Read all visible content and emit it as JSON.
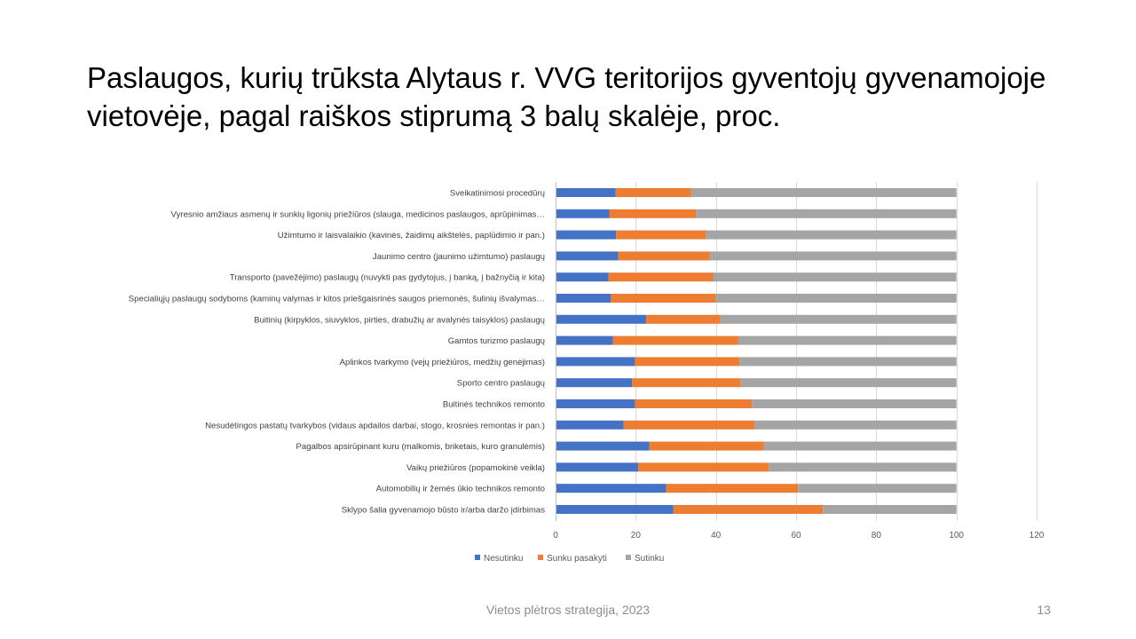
{
  "slide": {
    "title_line1": "Paslaugos, kurių trūksta Alytaus r. VVG teritorijos gyventojų gyvenamojoje",
    "title_line2": "vietovėje, pagal raiškos stiprumą 3 balų skalėje, proc.",
    "footer": "Vietos plėtros strategija, 2023",
    "page_number": "13"
  },
  "chart_data": {
    "type": "bar",
    "orientation": "horizontal",
    "stacked": true,
    "categories": [
      "Sveikatinimosi procedūrų",
      "Vyresnio amžiaus asmenų ir sunkių ligonių priežiūros (slauga, medicinos paslaugos, aprūpinimas…",
      "Užimtumo ir laisvalaikio (kavinės, žaidimų aikštelės, paplūdimio ir pan.)",
      "Jaunimo centro (jaunimo užimtumo) paslaugų",
      "Transporto (pavežėjimo) paslaugų (nuvykti pas gydytojus, į banką, į bažnyčią ir kita)",
      "Specialiųjų paslaugų sodyboms (kaminų valymas ir kitos priešgaisrinės saugos priemonės, šulinių išvalymas…",
      "Buitinių (kirpyklos, siuvyklos, pirties, drabužių ar avalynės taisyklos) paslaugų",
      "Gamtos turizmo paslaugų",
      "Aplinkos tvarkymo (vejų priežiūros, medžių genėjimas)",
      "Sporto centro paslaugų",
      "Buitinės technikos remonto",
      "Nesudėtingos pastatų tvarkybos (vidaus apdailos darbai, stogo, krosnies remontas ir pan.)",
      "Pagalbos apsirūpinant kuru (malkomis, briketais, kuro granulėmis)",
      "Vaikų priežiūros (popamokinė veikla)",
      "Automobilių ir žemės ūkio technikos remonto",
      "Sklypo šalia gyvenamojo būsto ir/arba daržo įdirbimas"
    ],
    "series": [
      {
        "name": "Nesutinku",
        "color": "#4472c4",
        "values": [
          15.0,
          13.4,
          15.1,
          15.6,
          13.2,
          13.8,
          22.6,
          14.3,
          19.8,
          19.1,
          19.8,
          17.0,
          23.4,
          20.6,
          27.6,
          29.4
        ]
      },
      {
        "name": "Sunku pasakyti",
        "color": "#ed7d31",
        "values": [
          18.9,
          21.6,
          22.4,
          22.9,
          26.1,
          26.2,
          18.5,
          31.3,
          26.1,
          27.1,
          29.2,
          32.6,
          28.6,
          32.6,
          32.9,
          37.3
        ]
      },
      {
        "name": "Sutinku",
        "color": "#a5a5a5",
        "values": [
          66.1,
          65.0,
          62.5,
          61.5,
          60.7,
          60.0,
          58.9,
          54.4,
          54.1,
          53.8,
          51.0,
          50.4,
          48.0,
          46.8,
          39.5,
          33.3
        ]
      }
    ],
    "xlim": [
      0,
      120
    ],
    "xticks": [
      "0",
      "20",
      "40",
      "60",
      "80",
      "100",
      "120"
    ],
    "grid": true,
    "legend_position": "bottom"
  }
}
